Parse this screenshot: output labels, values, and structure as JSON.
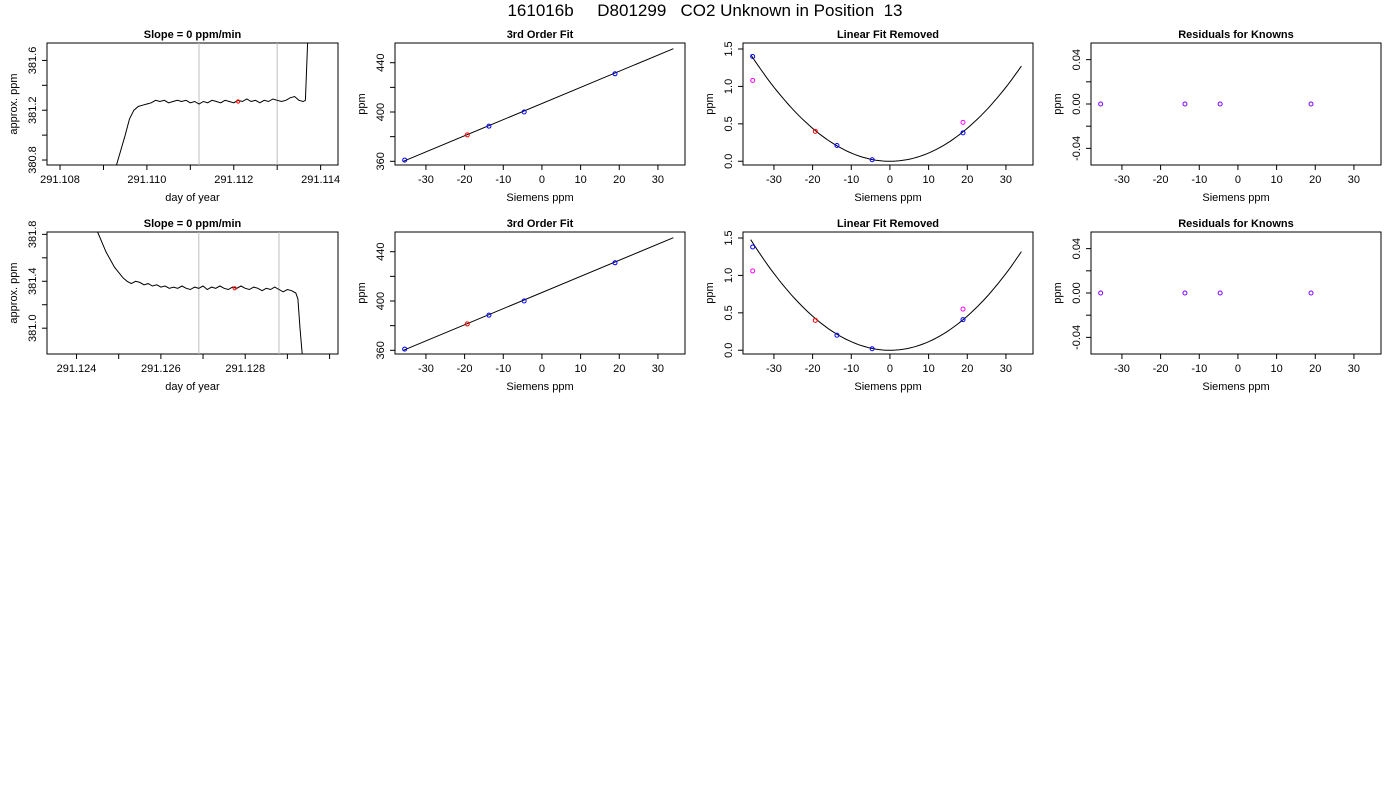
{
  "page": {
    "title": "161016b     D801299   CO2 Unknown in Position  13"
  },
  "colors": {
    "axis": "#000000",
    "curve": "#000000",
    "guide_line": "#bdbdbd",
    "point_known": "#0000ff",
    "point_unknown": "#ff0000",
    "point_raw": "#ff00ff",
    "point_orange": "#ff7f00",
    "point_purple": "#7f00ff"
  },
  "chart_data": [
    {
      "type": "line",
      "title": "Slope =  0  ppm/min",
      "xlabel": "day of year",
      "ylabel": "approx. ppm",
      "xlim": [
        291.1077,
        291.1144
      ],
      "ylim": [
        380.76,
        381.74
      ],
      "xticks": [
        291.108,
        291.109,
        291.11,
        291.111,
        291.112,
        291.113,
        291.114
      ],
      "xtick_labels": [
        "291.108",
        "",
        "291.110",
        "",
        "291.112",
        "",
        "291.114"
      ],
      "yticks": [
        380.8,
        381.0,
        381.2,
        381.4,
        381.6
      ],
      "ytick_labels": [
        "380.8",
        "",
        "381.2",
        "",
        "381.6"
      ],
      "guides": [
        291.1112,
        291.113
      ],
      "series": [
        {
          "role": "trace",
          "x": [
            291.1093,
            291.1095,
            291.1096,
            291.1097,
            291.1098,
            291.1099,
            291.11,
            291.1101,
            291.1102,
            291.1103,
            291.1104,
            291.1105,
            291.1106,
            291.1107,
            291.1108,
            291.1109,
            291.111,
            291.1111,
            291.1112,
            291.1113,
            291.1114,
            291.1115,
            291.1116,
            291.1117,
            291.1118,
            291.1119,
            291.112,
            291.1121,
            291.1122,
            291.1123,
            291.1124,
            291.1125,
            291.1126,
            291.1127,
            291.1128,
            291.1129,
            291.113,
            291.1131,
            291.1132,
            291.1133,
            291.1134,
            291.1135,
            291.1136,
            291.11365,
            291.1137
          ],
          "y": [
            380.76,
            381.0,
            381.13,
            381.2,
            381.23,
            381.24,
            381.25,
            381.26,
            381.28,
            381.27,
            381.28,
            381.26,
            381.27,
            381.28,
            381.27,
            381.28,
            381.26,
            381.27,
            381.25,
            381.27,
            381.26,
            381.28,
            381.27,
            381.26,
            381.28,
            381.27,
            381.26,
            381.28,
            381.27,
            381.29,
            381.27,
            381.28,
            381.26,
            381.28,
            381.27,
            381.29,
            381.28,
            381.27,
            381.28,
            381.3,
            381.31,
            381.28,
            381.27,
            381.28,
            381.74
          ]
        },
        {
          "role": "marker",
          "x": [
            291.1121
          ],
          "y": [
            381.27
          ]
        }
      ]
    },
    {
      "type": "scatter",
      "title": "3rd Order Fit",
      "xlabel": "Siemens ppm",
      "ylabel": "ppm",
      "xlim": [
        -38,
        37
      ],
      "ylim": [
        357,
        456
      ],
      "xticks": [
        -30,
        -20,
        -10,
        0,
        10,
        20,
        30
      ],
      "xtick_labels": [
        "-30",
        "-20",
        "-10",
        "0",
        "10",
        "20",
        "30"
      ],
      "yticks": [
        360,
        380,
        400,
        420,
        440
      ],
      "ytick_labels": [
        "360",
        "",
        "400",
        "",
        "440"
      ],
      "fit_line": {
        "x": [
          -36,
          34
        ],
        "y": [
          359.8,
          451.4
        ]
      },
      "series": [
        {
          "role": "known",
          "x": [
            -35.5,
            -13.7,
            -4.6,
            18.9
          ],
          "y": [
            361.0,
            388.5,
            400.0,
            431.0
          ]
        },
        {
          "role": "unknown",
          "x": [
            -19.3
          ],
          "y": [
            381.4
          ]
        }
      ]
    },
    {
      "type": "scatter",
      "title": "Linear Fit Removed",
      "xlabel": "Siemens ppm",
      "ylabel": "ppm",
      "xlim": [
        -38,
        37
      ],
      "ylim": [
        -0.05,
        1.58
      ],
      "xticks": [
        -30,
        -20,
        -10,
        0,
        10,
        20,
        30
      ],
      "xtick_labels": [
        "-30",
        "-20",
        "-10",
        "0",
        "10",
        "20",
        "30"
      ],
      "yticks": [
        0.0,
        0.5,
        1.0,
        1.5
      ],
      "ytick_labels": [
        "0.0",
        "0.5",
        "1.0",
        "1.5"
      ],
      "curve": {
        "a": 0.0011,
        "b": 0.0,
        "c": 0.0,
        "x_from": -36,
        "x_to": 34
      },
      "series": [
        {
          "role": "known",
          "x": [
            -35.5,
            -13.7,
            -4.6,
            18.9
          ],
          "y": [
            1.4,
            0.21,
            0.02,
            0.38
          ]
        },
        {
          "role": "raw",
          "x": [
            -35.5,
            18.9
          ],
          "y": [
            1.08,
            0.52
          ]
        },
        {
          "role": "unknown",
          "x": [
            -19.3
          ],
          "y": [
            0.4
          ]
        }
      ]
    },
    {
      "type": "scatter",
      "title": "Residuals for Knowns",
      "xlabel": "Siemens ppm",
      "ylabel": "ppm",
      "xlim": [
        -38,
        37
      ],
      "ylim": [
        -0.055,
        0.055
      ],
      "xticks": [
        -30,
        -20,
        -10,
        0,
        10,
        20,
        30
      ],
      "xtick_labels": [
        "-30",
        "-20",
        "-10",
        "0",
        "10",
        "20",
        "30"
      ],
      "yticks": [
        -0.04,
        -0.02,
        0.0,
        0.02,
        0.04
      ],
      "ytick_labels": [
        "-0.04",
        "",
        "0.00",
        "",
        "0.04"
      ],
      "series": [
        {
          "role": "residual",
          "x": [
            -35.5,
            -13.7,
            -4.6,
            18.9
          ],
          "y": [
            0.0,
            0.0,
            0.0,
            0.0
          ]
        }
      ]
    },
    {
      "type": "line",
      "title": "Slope =  0  ppm/min",
      "xlabel": "day of year",
      "ylabel": "approx. ppm",
      "xlim": [
        291.1233,
        291.1302
      ],
      "ylim": [
        380.78,
        381.82
      ],
      "xticks": [
        291.124,
        291.125,
        291.126,
        291.127,
        291.128,
        291.129,
        291.13
      ],
      "xtick_labels": [
        "291.124",
        "",
        "291.126",
        "",
        "291.128",
        "",
        ""
      ],
      "yticks": [
        381.0,
        381.2,
        381.4,
        381.6,
        381.8
      ],
      "ytick_labels": [
        "381.0",
        "",
        "381.4",
        "",
        "381.8"
      ],
      "guides": [
        291.1269,
        291.1288
      ],
      "series": [
        {
          "role": "trace",
          "x": [
            291.1245,
            291.1247,
            291.1249,
            291.1251,
            291.1252,
            291.1253,
            291.1254,
            291.1255,
            291.1256,
            291.1257,
            291.1258,
            291.1259,
            291.126,
            291.1261,
            291.1262,
            291.1263,
            291.1264,
            291.1265,
            291.1266,
            291.1267,
            291.1268,
            291.1269,
            291.127,
            291.1271,
            291.1272,
            291.1273,
            291.1274,
            291.1275,
            291.1276,
            291.1277,
            291.1278,
            291.1279,
            291.128,
            291.1281,
            291.1282,
            291.1283,
            291.1284,
            291.1285,
            291.1286,
            291.1287,
            291.1288,
            291.1289,
            291.129,
            291.1291,
            291.1292,
            291.12925,
            291.1293,
            291.12935
          ],
          "y": [
            381.82,
            381.65,
            381.52,
            381.43,
            381.4,
            381.38,
            381.4,
            381.39,
            381.37,
            381.38,
            381.36,
            381.37,
            381.35,
            381.36,
            381.34,
            381.35,
            381.34,
            381.36,
            381.34,
            381.33,
            381.35,
            381.34,
            381.36,
            381.33,
            381.35,
            381.34,
            381.36,
            381.34,
            381.33,
            381.35,
            381.34,
            381.36,
            381.34,
            381.33,
            381.35,
            381.34,
            381.32,
            381.34,
            381.33,
            381.35,
            381.33,
            381.31,
            381.33,
            381.32,
            381.3,
            381.25,
            381.0,
            380.78
          ]
        },
        {
          "role": "marker",
          "x": [
            291.12775
          ],
          "y": [
            381.34
          ]
        }
      ]
    },
    {
      "type": "scatter",
      "title": "3rd Order Fit",
      "xlabel": "Siemens ppm",
      "ylabel": "ppm",
      "xlim": [
        -38,
        37
      ],
      "ylim": [
        357,
        456
      ],
      "xticks": [
        -30,
        -20,
        -10,
        0,
        10,
        20,
        30
      ],
      "xtick_labels": [
        "-30",
        "-20",
        "-10",
        "0",
        "10",
        "20",
        "30"
      ],
      "yticks": [
        360,
        380,
        400,
        420,
        440
      ],
      "ytick_labels": [
        "360",
        "",
        "400",
        "",
        "440"
      ],
      "fit_line": {
        "x": [
          -36,
          34
        ],
        "y": [
          359.8,
          451.4
        ]
      },
      "series": [
        {
          "role": "known",
          "x": [
            -35.5,
            -13.7,
            -4.6,
            18.9
          ],
          "y": [
            361.0,
            388.5,
            400.0,
            431.0
          ]
        },
        {
          "role": "unknown",
          "x": [
            -19.3
          ],
          "y": [
            381.4
          ]
        }
      ]
    },
    {
      "type": "scatter",
      "title": "Linear Fit Removed",
      "xlabel": "Siemens ppm",
      "ylabel": "ppm",
      "xlim": [
        -38,
        37
      ],
      "ylim": [
        -0.05,
        1.58
      ],
      "xticks": [
        -30,
        -20,
        -10,
        0,
        10,
        20,
        30
      ],
      "xtick_labels": [
        "-30",
        "-20",
        "-10",
        "0",
        "10",
        "20",
        "30"
      ],
      "yticks": [
        0.0,
        0.5,
        1.0,
        1.5
      ],
      "ytick_labels": [
        "0.0",
        "0.5",
        "1.0",
        "1.5"
      ],
      "curve": {
        "a": 0.00114,
        "b": 0.0,
        "c": 0.0,
        "x_from": -36,
        "x_to": 34
      },
      "series": [
        {
          "role": "known",
          "x": [
            -35.5,
            -13.7,
            -4.6,
            18.9
          ],
          "y": [
            1.38,
            0.2,
            0.02,
            0.41
          ]
        },
        {
          "role": "raw",
          "x": [
            -35.5,
            18.9
          ],
          "y": [
            1.06,
            0.55
          ]
        },
        {
          "role": "unknown",
          "x": [
            -19.3
          ],
          "y": [
            0.4
          ]
        }
      ]
    },
    {
      "type": "scatter",
      "title": "Residuals for Knowns",
      "xlabel": "Siemens ppm",
      "ylabel": "ppm",
      "xlim": [
        -38,
        37
      ],
      "ylim": [
        -0.055,
        0.055
      ],
      "xticks": [
        -30,
        -20,
        -10,
        0,
        10,
        20,
        30
      ],
      "xtick_labels": [
        "-30",
        "-20",
        "-10",
        "0",
        "10",
        "20",
        "30"
      ],
      "yticks": [
        -0.04,
        -0.02,
        0.0,
        0.02,
        0.04
      ],
      "ytick_labels": [
        "-0.04",
        "",
        "0.00",
        "",
        "0.04"
      ],
      "series": [
        {
          "role": "residual",
          "x": [
            -35.5,
            -13.7,
            -4.6,
            18.9
          ],
          "y": [
            0.0,
            0.0,
            0.0,
            0.0
          ]
        }
      ]
    }
  ]
}
